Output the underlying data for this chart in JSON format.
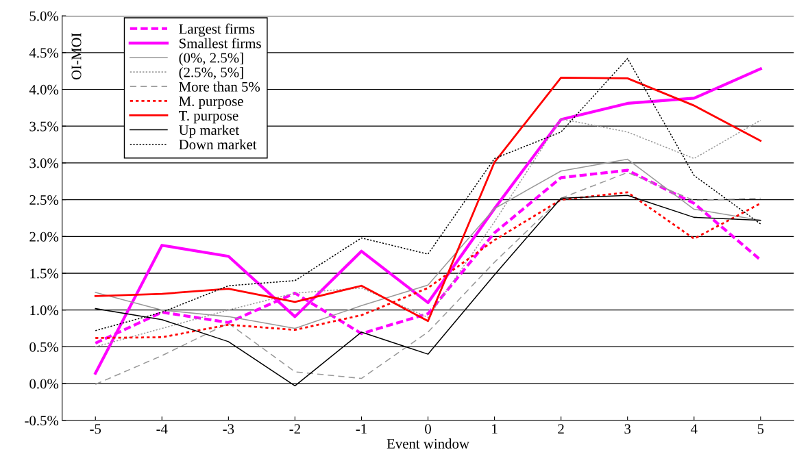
{
  "chart_data": {
    "type": "line",
    "xlabel": "Event window",
    "ylabel": "OI-MOI",
    "categories": [
      "-5",
      "-4",
      "-3",
      "-2",
      "-1",
      "0",
      "1",
      "2",
      "3",
      "4",
      "5"
    ],
    "ylim": [
      -0.5,
      5.0
    ],
    "yticks": [
      {
        "value": -0.5,
        "label": "-0.5%"
      },
      {
        "value": 0,
        "label": "0.0%"
      },
      {
        "value": 0.5,
        "label": "0.5%"
      },
      {
        "value": 1.0,
        "label": "1.0%"
      },
      {
        "value": 1.5,
        "label": "1.5%"
      },
      {
        "value": 2.0,
        "label": "2.0%"
      },
      {
        "value": 2.5,
        "label": "2.5%"
      },
      {
        "value": 3.0,
        "label": "3.0%"
      },
      {
        "value": 3.5,
        "label": "3.5%"
      },
      {
        "value": 4.0,
        "label": "4.0%"
      },
      {
        "value": 4.5,
        "label": "4.5%"
      },
      {
        "value": 5.0,
        "label": "5.0%"
      }
    ],
    "grid": "y",
    "legend": "top left",
    "marker": "none",
    "series": [
      {
        "name": "Largest firms",
        "color": "#ff00ff",
        "line_style": "dashed",
        "values": [
          0.55,
          0.97,
          0.83,
          1.23,
          0.68,
          0.95,
          2.05,
          2.8,
          2.9,
          2.45,
          1.68
        ]
      },
      {
        "name": "Smallest firms",
        "color": "#ff00ff",
        "line_style": "solid",
        "values": [
          0.14,
          1.88,
          1.73,
          0.91,
          1.8,
          1.1,
          2.38,
          3.59,
          3.81,
          3.88,
          4.28
        ]
      },
      {
        "name": "(0%, 2.5%]",
        "color": "#999999",
        "line_style": "solid",
        "values": [
          1.24,
          1.0,
          0.91,
          0.75,
          1.06,
          1.34,
          2.38,
          2.89,
          3.05,
          2.37,
          2.22
        ]
      },
      {
        "name": "(2.5%, 5%]",
        "color": "#999999",
        "line_style": "dotted",
        "values": [
          0.5,
          0.75,
          1.0,
          1.23,
          1.3,
          0.9,
          2.2,
          3.6,
          3.42,
          3.06,
          3.58
        ]
      },
      {
        "name": "More than 5%",
        "color": "#999999",
        "line_style": "dashed",
        "values": [
          -0.01,
          0.38,
          0.82,
          0.16,
          0.07,
          0.7,
          1.65,
          2.52,
          2.87,
          2.49,
          2.52
        ]
      },
      {
        "name": "M. purpose",
        "color": "#ff0000",
        "line_style": "dotted",
        "values": [
          0.62,
          0.63,
          0.8,
          0.73,
          0.93,
          1.3,
          1.95,
          2.5,
          2.6,
          1.97,
          2.45
        ]
      },
      {
        "name": "T. purpose",
        "color": "#ff0000",
        "line_style": "solid",
        "values": [
          1.19,
          1.22,
          1.29,
          1.11,
          1.33,
          0.85,
          3.01,
          4.16,
          4.15,
          3.78,
          3.3
        ]
      },
      {
        "name": "Up market",
        "color": "#000000",
        "line_style": "solid",
        "values": [
          1.02,
          0.87,
          0.57,
          -0.03,
          0.7,
          0.4,
          1.48,
          2.52,
          2.56,
          2.26,
          2.22
        ]
      },
      {
        "name": "Down market",
        "color": "#000000",
        "line_style": "dotted",
        "values": [
          0.72,
          0.97,
          1.33,
          1.4,
          1.98,
          1.76,
          3.06,
          3.42,
          4.42,
          2.83,
          2.17
        ]
      }
    ]
  }
}
